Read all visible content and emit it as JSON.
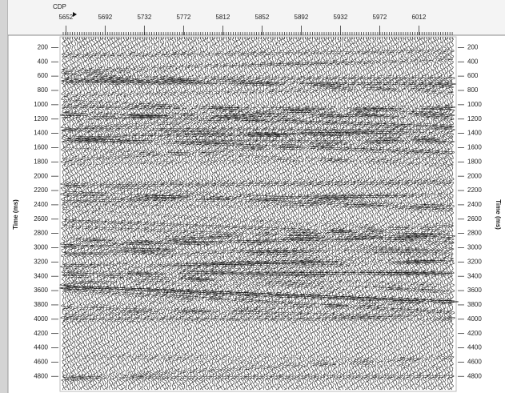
{
  "chart_data": {
    "type": "seismic",
    "xlabel": "CDP",
    "ylabel": "Time (ms)",
    "xlim": [
      5646,
      6050
    ],
    "xticks": [
      5652,
      5692,
      5732,
      5772,
      5812,
      5852,
      5892,
      5932,
      5972,
      6012
    ],
    "ylim": [
      50,
      5010
    ],
    "y_inverted": true,
    "yticks": [
      200,
      400,
      600,
      800,
      1000,
      1200,
      1400,
      1600,
      1800,
      2000,
      2200,
      2400,
      2600,
      2800,
      3000,
      3200,
      3400,
      3600,
      3800,
      4000,
      4200,
      4400,
      4600,
      4800
    ]
  }
}
